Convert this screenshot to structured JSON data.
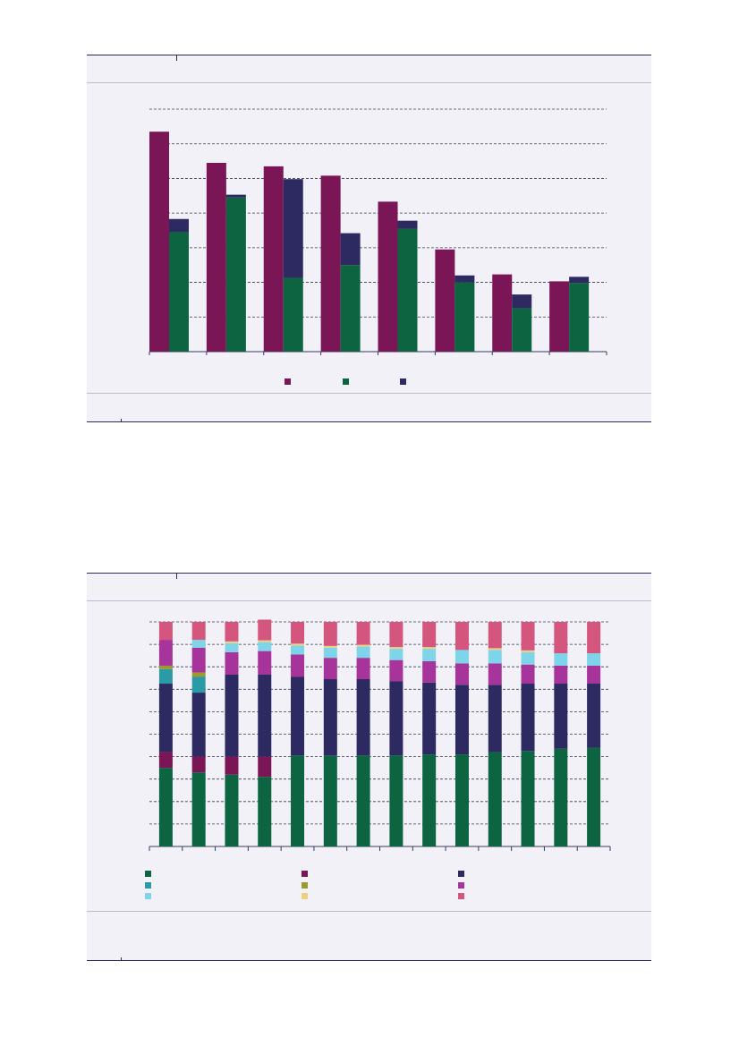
{
  "chart_data": [
    {
      "type": "bar",
      "title": "",
      "xlabel": "",
      "ylabel": "",
      "ylim": [
        0,
        7
      ],
      "grid": true,
      "legend_position": "bottom-center",
      "categories": [
        "",
        "",
        "",
        "",
        "",
        "",
        "",
        ""
      ],
      "colors": {
        "series_a": "#7a1656",
        "series_b": "#0c6540",
        "series_c": "#2d2a62"
      },
      "groups": [
        {
          "series_a": 6.35,
          "series_b": 3.45,
          "series_c": 0.38
        },
        {
          "series_a": 5.45,
          "series_b": 4.45,
          "series_c": 0.08
        },
        {
          "series_a": 5.35,
          "series_b": 2.13,
          "series_c": 2.85
        },
        {
          "series_a": 5.08,
          "series_b": 2.5,
          "series_c": 0.92
        },
        {
          "series_a": 4.33,
          "series_b": 3.55,
          "series_c": 0.23
        },
        {
          "series_a": 2.95,
          "series_b": 2.0,
          "series_c": 0.2
        },
        {
          "series_a": 2.23,
          "series_b": 1.25,
          "series_c": 0.4
        },
        {
          "series_a": 2.03,
          "series_b": 1.98,
          "series_c": 0.18
        }
      ],
      "series": [
        {
          "name": "",
          "color": "#7a1656"
        },
        {
          "name": "",
          "color": "#0c6540"
        },
        {
          "name": "",
          "color": "#2d2a62"
        }
      ]
    },
    {
      "type": "bar",
      "stacked": true,
      "title": "",
      "xlabel": "",
      "ylabel": "",
      "ylim": [
        0,
        100
      ],
      "grid": true,
      "legend_position": "bottom",
      "categories": [
        "",
        "",
        "",
        "",
        "",
        "",
        "",
        "",
        "",
        "",
        "",
        "",
        "",
        ""
      ],
      "series": [
        {
          "name": "",
          "color": "#0c6540",
          "values": [
            35,
            33,
            32,
            31,
            40.5,
            40.5,
            40.5,
            40.5,
            41,
            41,
            42,
            42.5,
            43.5,
            44
          ]
        },
        {
          "name": "",
          "color": "#7a1656",
          "values": [
            7,
            7,
            8,
            9,
            0,
            0,
            0,
            0,
            0,
            0,
            0,
            0,
            0,
            0
          ]
        },
        {
          "name": "",
          "color": "#2d2a62",
          "values": [
            30.5,
            28.5,
            36.5,
            36.5,
            35,
            34,
            34,
            33,
            32,
            31,
            30,
            30,
            29,
            28.5
          ]
        },
        {
          "name": "",
          "color": "#2a9aa6",
          "values": [
            6.5,
            7,
            0,
            0,
            0,
            0,
            0,
            0,
            0,
            0,
            0,
            0,
            0,
            0
          ]
        },
        {
          "name": "",
          "color": "#9a9a2e",
          "values": [
            1.5,
            2,
            0,
            0,
            0,
            0,
            0,
            0,
            0,
            0,
            0,
            0,
            0,
            0
          ]
        },
        {
          "name": "",
          "color": "#a6349a",
          "values": [
            11.5,
            11,
            10,
            10.5,
            10,
            9.5,
            9.5,
            9.5,
            9.5,
            9.5,
            9.5,
            8.5,
            8,
            8
          ]
        },
        {
          "name": "",
          "color": "#7ed4e8",
          "values": [
            0,
            3.5,
            4,
            4,
            4,
            4.5,
            5,
            5,
            5.5,
            6,
            6,
            5.5,
            5.5,
            5.5
          ]
        },
        {
          "name": "",
          "color": "#ecd080",
          "values": [
            0,
            0,
            0.8,
            0.8,
            0.8,
            0.8,
            0.8,
            0.8,
            0.8,
            0,
            0.8,
            0.8,
            0,
            0
          ]
        },
        {
          "name": "",
          "color": "#d4567e",
          "values": [
            8,
            8,
            8.7,
            9.2,
            9.7,
            10.7,
            10.2,
            11.2,
            11.2,
            12.5,
            11.7,
            12.7,
            14,
            14
          ]
        }
      ]
    }
  ]
}
